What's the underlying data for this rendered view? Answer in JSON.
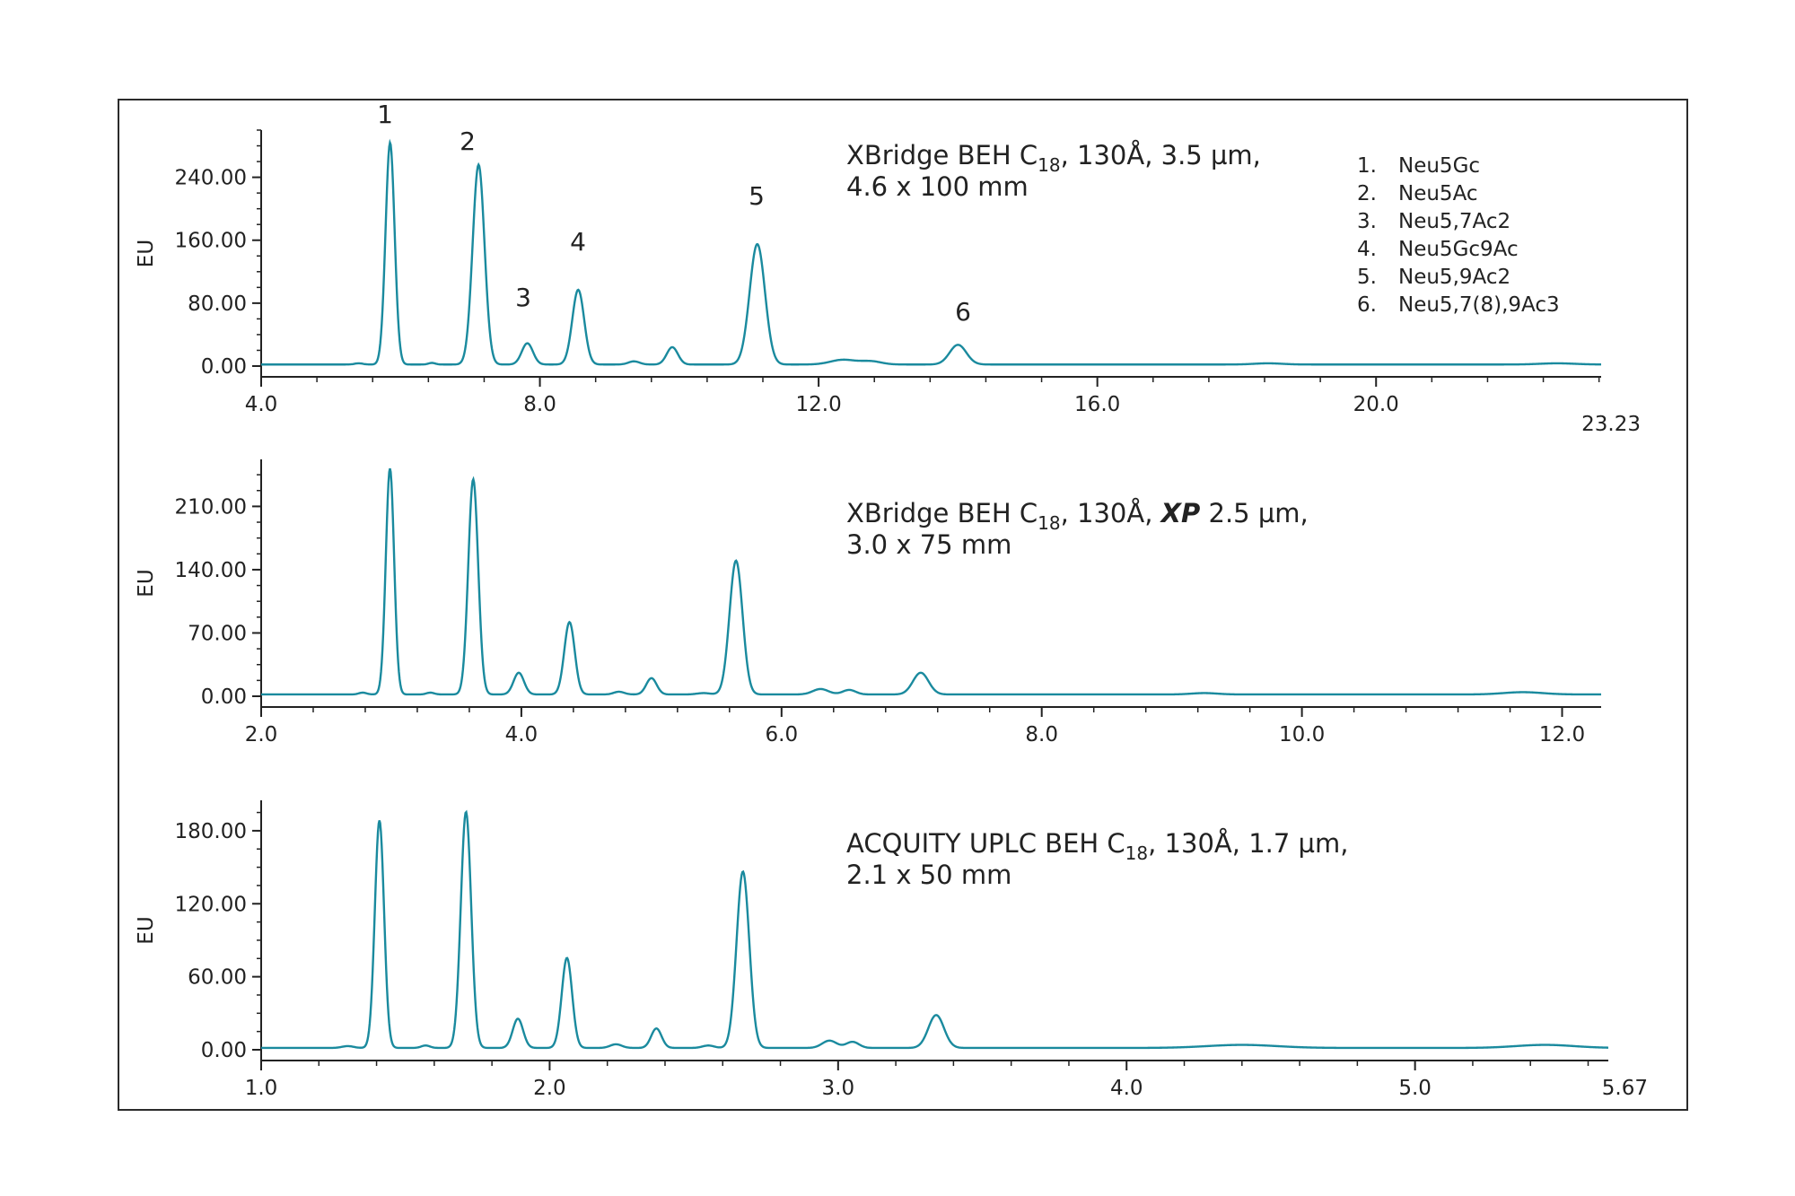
{
  "figure": {
    "legend": [
      {
        "num": "1.",
        "name": "Neu5Gc"
      },
      {
        "num": "2.",
        "name": "Neu5Ac"
      },
      {
        "num": "3.",
        "name": "Neu5,7Ac2"
      },
      {
        "num": "4.",
        "name": "Neu5Gc9Ac"
      },
      {
        "num": "5.",
        "name": "Neu5,9Ac2"
      },
      {
        "num": "6.",
        "name": "Neu5,7(8),9Ac3"
      }
    ],
    "colors": {
      "trace": "#1a8a9e",
      "axis": "#222222",
      "frame": "#2b2b2b"
    }
  },
  "chart_data": [
    {
      "type": "line",
      "title_line1_a": "XBridge BEH C",
      "title_sub": "18",
      "title_line1_b": ", 130Å, 3.5 µm,",
      "title_line1_bold": "",
      "title_line1_c": "",
      "title_line2": "4.6 x 100 mm",
      "ylabel": "EU",
      "xlim": [
        4.0,
        23.23
      ],
      "ylim": [
        0,
        300
      ],
      "xticks": [
        4.0,
        8.0,
        12.0,
        16.0,
        20.0
      ],
      "xtick_labels": [
        "4.0",
        "8.0",
        "12.0",
        "16.0",
        "20.0"
      ],
      "xend_label": "23.23",
      "yticks": [
        0,
        80,
        160,
        240
      ],
      "ytick_labels": [
        "0.00",
        "80.00",
        "160.00",
        "240.00"
      ],
      "baseline": 2,
      "peaks": [
        {
          "x": 5.4,
          "h": 1.5,
          "w": 0.06
        },
        {
          "x": 5.85,
          "h": 282,
          "w": 0.065,
          "label": "1"
        },
        {
          "x": 6.45,
          "h": 2,
          "w": 0.05
        },
        {
          "x": 7.12,
          "h": 254,
          "w": 0.085,
          "label": "2"
        },
        {
          "x": 7.82,
          "h": 27,
          "w": 0.08,
          "label": "3"
        },
        {
          "x": 8.55,
          "h": 95,
          "w": 0.085,
          "label": "4"
        },
        {
          "x": 9.35,
          "h": 4,
          "w": 0.08
        },
        {
          "x": 9.9,
          "h": 22,
          "w": 0.08
        },
        {
          "x": 11.12,
          "h": 153,
          "w": 0.11,
          "label": "5"
        },
        {
          "x": 12.35,
          "h": 6,
          "w": 0.18
        },
        {
          "x": 12.75,
          "h": 4,
          "w": 0.15
        },
        {
          "x": 14.0,
          "h": 25,
          "w": 0.12,
          "label": "6"
        },
        {
          "x": 18.45,
          "h": 1.5,
          "w": 0.2
        },
        {
          "x": 22.6,
          "h": 1.5,
          "w": 0.25
        }
      ]
    },
    {
      "type": "line",
      "title_line1_a": "XBridge BEH C",
      "title_sub": "18",
      "title_line1_b": ", 130Å, ",
      "title_line1_bold": "XP",
      "title_line1_c": " 2.5 µm,",
      "title_line2": "3.0 x 75 mm",
      "ylabel": "EU",
      "xlim": [
        2.0,
        12.3
      ],
      "ylim": [
        0,
        262
      ],
      "xticks": [
        2.0,
        4.0,
        6.0,
        8.0,
        10.0,
        12.0
      ],
      "xtick_labels": [
        "2.0",
        "4.0",
        "6.0",
        "8.0",
        "10.0",
        "12.0"
      ],
      "xend_label": "",
      "yticks": [
        0,
        70,
        140,
        210
      ],
      "ytick_labels": [
        "0.00",
        "70.00",
        "140.00",
        "210.00"
      ],
      "baseline": 2,
      "peaks": [
        {
          "x": 2.78,
          "h": 2,
          "w": 0.03
        },
        {
          "x": 2.99,
          "h": 250,
          "w": 0.032
        },
        {
          "x": 3.3,
          "h": 2,
          "w": 0.03
        },
        {
          "x": 3.63,
          "h": 238,
          "w": 0.038
        },
        {
          "x": 3.98,
          "h": 24,
          "w": 0.04
        },
        {
          "x": 4.37,
          "h": 80,
          "w": 0.04
        },
        {
          "x": 4.75,
          "h": 3,
          "w": 0.04
        },
        {
          "x": 5.0,
          "h": 18,
          "w": 0.04
        },
        {
          "x": 5.4,
          "h": 1.5,
          "w": 0.05
        },
        {
          "x": 5.65,
          "h": 148,
          "w": 0.05
        },
        {
          "x": 6.3,
          "h": 6,
          "w": 0.06
        },
        {
          "x": 6.52,
          "h": 5,
          "w": 0.05
        },
        {
          "x": 7.07,
          "h": 24,
          "w": 0.06
        },
        {
          "x": 9.25,
          "h": 1.5,
          "w": 0.1
        },
        {
          "x": 11.7,
          "h": 2.5,
          "w": 0.15
        }
      ]
    },
    {
      "type": "line",
      "title_line1_a": "ACQUITY UPLC BEH C",
      "title_sub": "18",
      "title_line1_b": ", 130Å, 1.7 µm,",
      "title_line1_bold": "",
      "title_line1_c": "",
      "title_line2": "2.1 x 50 mm",
      "ylabel": "EU",
      "xlim": [
        1.0,
        5.67
      ],
      "ylim": [
        0,
        205
      ],
      "xticks": [
        1.0,
        2.0,
        3.0,
        4.0,
        5.0
      ],
      "xtick_labels": [
        "1.0",
        "2.0",
        "3.0",
        "4.0",
        "5.0"
      ],
      "xend_label": "5.67",
      "yticks": [
        0,
        60,
        120,
        180
      ],
      "ytick_labels": [
        "0.00",
        "60.00",
        "120.00",
        "180.00"
      ],
      "baseline": 1.5,
      "peaks": [
        {
          "x": 1.3,
          "h": 1.5,
          "w": 0.02
        },
        {
          "x": 1.41,
          "h": 187,
          "w": 0.016
        },
        {
          "x": 1.57,
          "h": 2,
          "w": 0.015
        },
        {
          "x": 1.71,
          "h": 194,
          "w": 0.018
        },
        {
          "x": 1.89,
          "h": 24,
          "w": 0.018
        },
        {
          "x": 2.06,
          "h": 74,
          "w": 0.018
        },
        {
          "x": 2.23,
          "h": 3,
          "w": 0.02
        },
        {
          "x": 2.37,
          "h": 16,
          "w": 0.018
        },
        {
          "x": 2.55,
          "h": 2,
          "w": 0.02
        },
        {
          "x": 2.67,
          "h": 145,
          "w": 0.022
        },
        {
          "x": 2.97,
          "h": 6,
          "w": 0.025
        },
        {
          "x": 3.05,
          "h": 5,
          "w": 0.022
        },
        {
          "x": 3.34,
          "h": 27,
          "w": 0.027
        },
        {
          "x": 4.4,
          "h": 2.5,
          "w": 0.12
        },
        {
          "x": 5.45,
          "h": 2.5,
          "w": 0.1
        }
      ]
    }
  ]
}
